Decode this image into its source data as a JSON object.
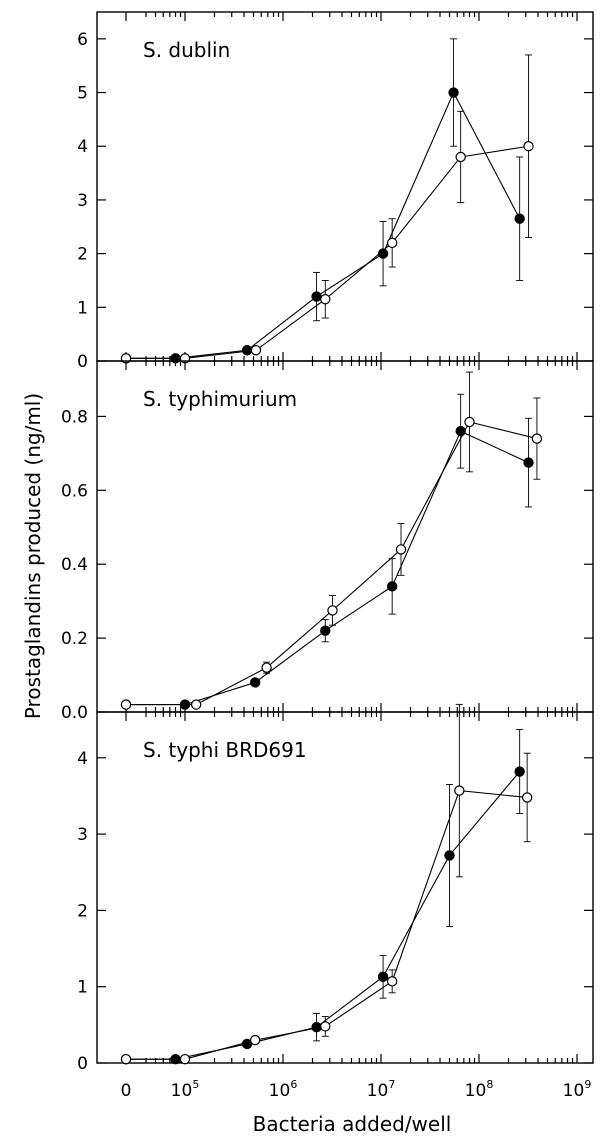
{
  "chart_data": [
    {
      "type": "scatter",
      "title": "S. dublin",
      "xlabel": "Bacteria added/well",
      "ylabel": "Prostaglandins produced (ng/ml)",
      "x_scale": "log",
      "ylim": [
        0,
        6.5
      ],
      "yticks": [
        "0",
        "1",
        "2",
        "3",
        "4",
        "5",
        "6"
      ],
      "series": [
        {
          "marker": "filled-circle",
          "x": [
            0,
            80000,
            430000,
            2200000,
            10500000,
            55000000,
            260000000
          ],
          "y": [
            0.05,
            0.05,
            0.2,
            1.2,
            2.0,
            5.0,
            2.65
          ],
          "err": [
            0,
            0,
            0,
            0.45,
            0.6,
            1.0,
            1.15
          ]
        },
        {
          "marker": "open-circle",
          "x": [
            0,
            100000,
            530000,
            2700000,
            13000000,
            65000000,
            320000000
          ],
          "y": [
            0.05,
            0.05,
            0.2,
            1.15,
            2.2,
            3.8,
            4.0
          ],
          "err": [
            0,
            0,
            0,
            0.35,
            0.45,
            0.85,
            1.7
          ]
        }
      ]
    },
    {
      "type": "scatter",
      "title": "S. typhimurium",
      "x_scale": "log",
      "ylim": [
        0,
        0.95
      ],
      "yticks": [
        "0.0",
        "0.2",
        "0.4",
        "0.6",
        "0.8"
      ],
      "series": [
        {
          "marker": "filled-circle",
          "x": [
            0,
            100000,
            520000,
            2700000,
            13000000,
            65000000,
            320000000
          ],
          "y": [
            0.02,
            0.02,
            0.08,
            0.22,
            0.34,
            0.76,
            0.675
          ],
          "err": [
            0,
            0,
            0,
            0.03,
            0.075,
            0.1,
            0.12
          ]
        },
        {
          "marker": "open-circle",
          "x": [
            0,
            130000,
            680000,
            3200000,
            16000000,
            80000000,
            390000000
          ],
          "y": [
            0.02,
            0.02,
            0.12,
            0.275,
            0.44,
            0.785,
            0.74
          ],
          "err": [
            0,
            0,
            0.015,
            0.04,
            0.07,
            0.135,
            0.11
          ]
        }
      ]
    },
    {
      "type": "scatter",
      "title": "S. typhi BRD691",
      "x_scale": "log",
      "xlim": [
        10000,
        1000000000
      ],
      "ylim": [
        0,
        4.6
      ],
      "yticks": [
        "0",
        "1",
        "2",
        "3",
        "4"
      ],
      "xticks": [
        "0",
        "10",
        "10",
        "10",
        "10",
        "10"
      ],
      "xtick_exponents": [
        "",
        "5",
        "6",
        "7",
        "8",
        "9"
      ],
      "series": [
        {
          "marker": "filled-circle",
          "x": [
            0,
            80000,
            430000,
            2200000,
            10500000,
            50000000,
            260000000
          ],
          "y": [
            0.05,
            0.05,
            0.25,
            0.47,
            1.13,
            2.72,
            3.82
          ],
          "err": [
            0,
            0,
            0,
            0.18,
            0.28,
            0.93,
            0.55
          ]
        },
        {
          "marker": "open-circle",
          "x": [
            0,
            100000,
            520000,
            2700000,
            13000000,
            63000000,
            310000000
          ],
          "y": [
            0.05,
            0.05,
            0.3,
            0.48,
            1.07,
            3.57,
            3.48
          ],
          "err": [
            0,
            0,
            0,
            0.13,
            0.15,
            1.13,
            0.58
          ]
        }
      ]
    }
  ]
}
